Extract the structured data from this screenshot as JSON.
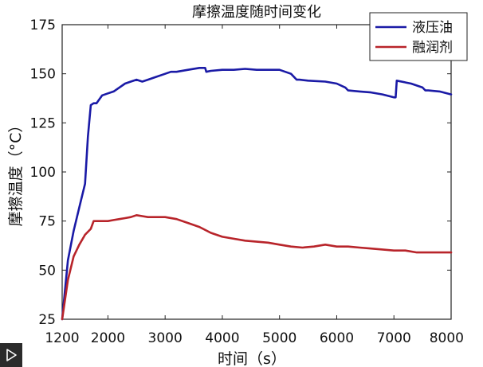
{
  "chart_data": {
    "type": "line",
    "title": "摩擦温度随时间变化",
    "xlabel": "时间（s）",
    "ylabel": "摩擦温度（°C）",
    "xlim": [
      1200,
      8000
    ],
    "ylim": [
      25,
      175
    ],
    "xticks": [
      1200,
      2000,
      3000,
      4000,
      5000,
      6000,
      7000,
      8000
    ],
    "yticks": [
      25,
      50,
      75,
      100,
      125,
      150,
      175
    ],
    "grid": false,
    "legend_position": "top-right",
    "series": [
      {
        "name": "液压油",
        "color": "#1a1aa6",
        "x": [
          1200,
          1300,
          1400,
          1500,
          1600,
          1650,
          1700,
          1750,
          1800,
          1900,
          2000,
          2100,
          2200,
          2300,
          2400,
          2500,
          2600,
          2700,
          2800,
          3000,
          3100,
          3200,
          3400,
          3600,
          3700,
          3720,
          3800,
          4000,
          4200,
          4400,
          4600,
          4800,
          5000,
          5100,
          5200,
          5300,
          5350,
          5500,
          5800,
          6000,
          6150,
          6200,
          6400,
          6600,
          6800,
          7000,
          7030,
          7050,
          7300,
          7500,
          7550,
          7600,
          7800,
          8000
        ],
        "y": [
          25,
          55,
          70,
          82,
          94,
          118,
          134,
          135,
          135,
          139,
          140,
          141,
          143,
          145,
          146,
          147,
          146,
          147,
          148,
          150,
          151,
          151,
          152,
          153,
          153,
          151,
          151.5,
          152,
          152,
          152.5,
          152,
          152,
          152,
          151,
          150,
          147,
          147,
          146.5,
          146,
          145,
          143,
          141.5,
          141,
          140.5,
          139.5,
          138,
          138,
          146.5,
          145,
          143,
          141.5,
          141.5,
          141,
          139.5
        ]
      },
      {
        "name": "融润剂",
        "color": "#b8242a",
        "x": [
          1200,
          1300,
          1400,
          1500,
          1600,
          1700,
          1750,
          1800,
          2000,
          2100,
          2200,
          2300,
          2400,
          2500,
          2600,
          2700,
          2800,
          3000,
          3200,
          3400,
          3600,
          3800,
          4000,
          4200,
          4400,
          4600,
          4800,
          5000,
          5200,
          5400,
          5600,
          5800,
          6000,
          6200,
          6400,
          6600,
          6800,
          7000,
          7200,
          7400,
          7600,
          7800,
          8000
        ],
        "y": [
          25,
          45,
          57,
          63,
          68,
          71,
          75,
          75,
          75,
          75.5,
          76,
          76.5,
          77,
          78,
          77.5,
          77,
          77,
          77,
          76,
          74,
          72,
          69,
          67,
          66,
          65,
          64.5,
          64,
          63,
          62,
          61.5,
          62,
          63,
          62,
          62,
          61.5,
          61,
          60.5,
          60,
          60,
          59,
          59,
          59,
          59
        ]
      }
    ]
  },
  "player": {
    "icon": "play-icon"
  }
}
